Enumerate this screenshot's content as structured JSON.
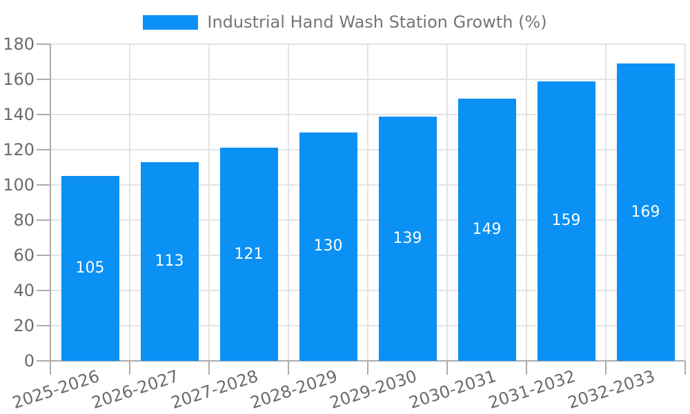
{
  "chart_data": {
    "type": "bar",
    "title": "",
    "legend": "Industrial Hand Wash Station Growth (%)",
    "legend_position": "top-center",
    "categories": [
      "2025-2026",
      "2026-2027",
      "2027-2028",
      "2028-2029",
      "2029-2030",
      "2030-2031",
      "2031-2032",
      "2032-2033"
    ],
    "values": [
      105,
      113,
      121,
      130,
      139,
      149,
      159,
      169
    ],
    "xlabel": "",
    "ylabel": "",
    "ylim": [
      0,
      180
    ],
    "ytick_step": 20,
    "grid": true,
    "bar_color": "#0b90f4",
    "value_label_color": "#ffffff",
    "grid_color": "#e3e3e3",
    "axis_color": "#ababab",
    "tick_label_color": "#6b6b6b",
    "legend_text_color": "#757575",
    "background_color": "#ffffff"
  }
}
